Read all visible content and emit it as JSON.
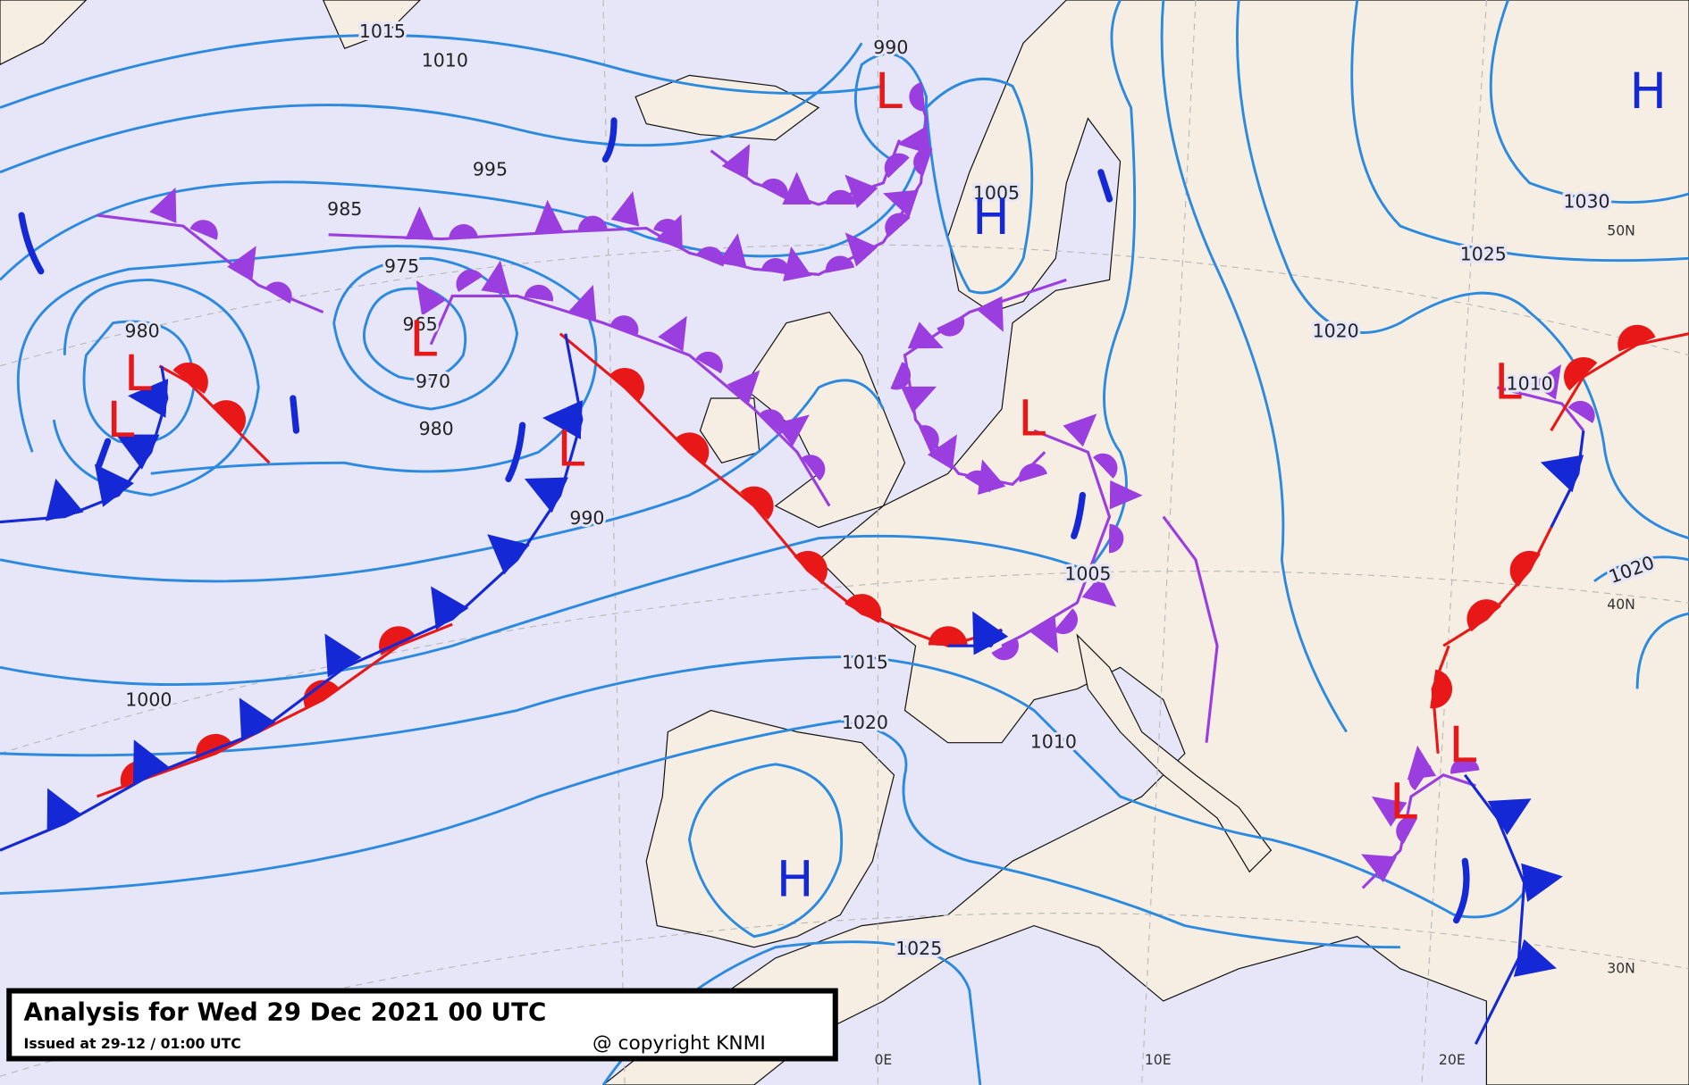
{
  "title": "Analysis for Wed 29 Dec 2021 00 UTC",
  "issued": "Issued at 29-12 / 01:00 UTC",
  "copyright": "@ copyright KNMI",
  "pressure_labels": [
    "1015",
    "1010",
    "990",
    "995",
    "985",
    "975",
    "965",
    "970",
    "980",
    "980",
    "990",
    "1000",
    "1005",
    "1005",
    "1015",
    "1020",
    "1010",
    "1025",
    "1020",
    "1025",
    "1030",
    "1010",
    "1020"
  ],
  "centers": [
    "H",
    "H",
    "H",
    "L",
    "L",
    "L",
    "L",
    "L",
    "L",
    "L",
    "L",
    "L"
  ],
  "graticule_labels": [
    "50N",
    "40N",
    "30N",
    "0E",
    "10E",
    "20E"
  ]
}
